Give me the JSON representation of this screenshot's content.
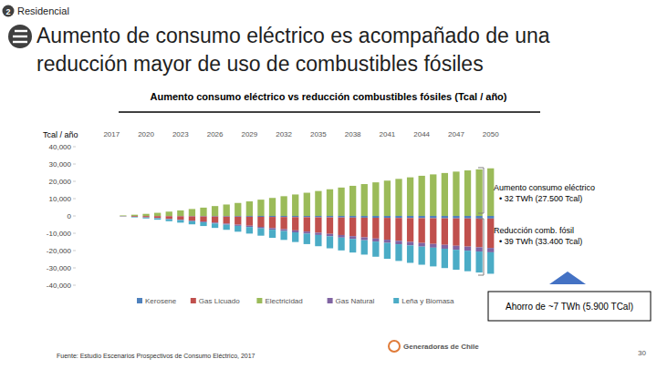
{
  "page": {
    "section_number": "2",
    "section": "Residencial",
    "heading": [
      "Aumento de consumo eléctrico es acompañado de una",
      "reducción mayor de uso de combustibles fósiles"
    ],
    "source": "Fuente: Estudio Escenarios Prospectivos de Consumo Eléctrico, 2017",
    "logo": "Generadoras de Chile",
    "page_number": "30"
  },
  "chart_data": {
    "type": "bar",
    "stacked": true,
    "title": "Aumento consumo eléctrico vs reducción combustibles fósiles (Tcal / año)",
    "y_label": "Tcal / año",
    "categories": [
      "2017",
      null,
      null,
      "2020",
      null,
      null,
      "2023",
      null,
      null,
      "2026",
      null,
      null,
      "2029",
      null,
      null,
      "2032",
      null,
      null,
      "2035",
      null,
      null,
      "2038",
      null,
      null,
      "2041",
      null,
      null,
      "2044",
      null,
      null,
      "2047",
      null,
      null,
      "2050"
    ],
    "series": [
      {
        "name": "Kerosene",
        "color": "#4f81bd",
        "values": [
          0,
          -20,
          -40,
          -70,
          -100,
          -140,
          -170,
          -220,
          -260,
          -310,
          -360,
          -410,
          -460,
          -510,
          -570,
          -620,
          -680,
          -730,
          -790,
          -840,
          -890,
          -950,
          -1000,
          -1060,
          -1110,
          -1170,
          -1220,
          -1270,
          -1310,
          -1350,
          -1400,
          -1430,
          -1470,
          -1500
        ]
      },
      {
        "name": "Gas Licuado",
        "color": "#c0504d",
        "values": [
          0,
          -190,
          -430,
          -740,
          -1110,
          -1550,
          -1980,
          -2470,
          -2970,
          -3520,
          -4080,
          -4640,
          -5190,
          -5810,
          -6430,
          -7050,
          -7670,
          -8280,
          -8900,
          -9520,
          -10140,
          -10760,
          -11370,
          -11990,
          -12610,
          -13230,
          -13790,
          -14340,
          -14840,
          -15330,
          -15830,
          -16260,
          -16630,
          -17000
        ]
      },
      {
        "name": "Electricidad",
        "color": "#9bbb59",
        "values": [
          0,
          300,
          700,
          1200,
          1800,
          2500,
          3200,
          4000,
          4800,
          5700,
          6600,
          7500,
          8400,
          9400,
          10400,
          11400,
          12400,
          13400,
          14400,
          15400,
          16400,
          17400,
          18400,
          19400,
          20400,
          21400,
          22300,
          23200,
          24000,
          24800,
          25600,
          26300,
          26900,
          27500
        ]
      },
      {
        "name": "Gas Natural",
        "color": "#8064a2",
        "values": [
          0,
          -30,
          -60,
          -110,
          -160,
          -230,
          -290,
          -360,
          -440,
          -520,
          -600,
          -680,
          -760,
          -850,
          -950,
          -1040,
          -1130,
          -1220,
          -1310,
          -1400,
          -1490,
          -1580,
          -1670,
          -1760,
          -1850,
          -1950,
          -2030,
          -2110,
          -2180,
          -2250,
          -2330,
          -2390,
          -2450,
          -2500
        ]
      },
      {
        "name": "Leña y Biomasa",
        "color": "#4bacc6",
        "values": [
          0,
          -140,
          -320,
          -540,
          -810,
          -1130,
          -1440,
          -1800,
          -2160,
          -2570,
          -2980,
          -3380,
          -3790,
          -4240,
          -4690,
          -5140,
          -5590,
          -6040,
          -6490,
          -6940,
          -7400,
          -7850,
          -8300,
          -8750,
          -9200,
          -9650,
          -10060,
          -10460,
          -10820,
          -11180,
          -11540,
          -11860,
          -12130,
          -12400
        ]
      }
    ],
    "ylim": [
      -40000,
      40000
    ],
    "yticks": [
      {
        "value": -40000,
        "label": "-40,000"
      },
      {
        "value": -30000,
        "label": "-30,000"
      },
      {
        "value": -20000,
        "label": "-20,000"
      },
      {
        "value": -10000,
        "label": "-10,000"
      },
      0,
      {
        "value": 10000,
        "label": "10,000"
      },
      {
        "value": 20000,
        "label": "20,000"
      },
      {
        "value": 30000,
        "label": "30,000"
      },
      {
        "value": 40000,
        "label": "40,000"
      }
    ],
    "grid": false,
    "legend": "bottom",
    "annotations": [
      {
        "title": "Aumento consumo eléctrico",
        "text": "• 32 TWh (27.500 Tcal)"
      },
      {
        "title": "Reducción comb. fósil",
        "text": "• 39 TWh (33.400 Tcal)"
      },
      {
        "text": "Ahorro de ~7 TWh (5.900 TCal)"
      }
    ]
  }
}
